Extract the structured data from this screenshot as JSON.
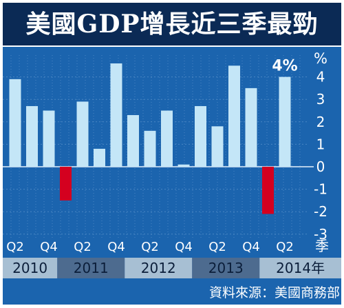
{
  "title": "美國GDP增長近三季最勁",
  "source": "資料來源：美國商務部",
  "chart_data": {
    "type": "bar",
    "unit_label": "%",
    "x_unit_label": "季",
    "categories": [
      "2010Q2",
      "2010Q3",
      "2010Q4",
      "2011Q1",
      "2011Q2",
      "2011Q3",
      "2011Q4",
      "2012Q1",
      "2012Q2",
      "2012Q3",
      "2012Q4",
      "2013Q1",
      "2013Q2",
      "2013Q3",
      "2013Q4",
      "2014Q1",
      "2014Q2"
    ],
    "values": [
      3.9,
      2.7,
      2.5,
      -1.5,
      2.9,
      0.8,
      4.6,
      2.3,
      1.6,
      2.5,
      0.1,
      2.7,
      1.8,
      4.5,
      3.5,
      -2.1,
      4.0
    ],
    "tick_labels": [
      "Q2",
      "Q4",
      "Q2",
      "Q4",
      "Q2",
      "Q4",
      "Q2",
      "Q4",
      "Q2"
    ],
    "tick_label_indices": [
      0,
      2,
      4,
      6,
      8,
      10,
      12,
      14,
      16
    ],
    "year_labels": [
      "2010",
      "2011",
      "2012",
      "2013",
      "2014年"
    ],
    "year_spans": [
      [
        0,
        2
      ],
      [
        3,
        6
      ],
      [
        7,
        10
      ],
      [
        11,
        14
      ],
      [
        15,
        16
      ]
    ],
    "annotation": {
      "text": "4%",
      "index": 16
    },
    "ylim": [
      -3,
      4.6
    ],
    "yticks": [
      -3,
      -2,
      -1,
      0,
      1,
      2,
      3,
      4
    ],
    "grid": true,
    "colors": {
      "positive": "#c4e6f7",
      "negative": "#d4001f",
      "background": "#1b64ae",
      "title_bar": "#0b2a55",
      "year_band_light": "#a7bfd3",
      "year_band_dark": "#4d6b8f"
    }
  }
}
